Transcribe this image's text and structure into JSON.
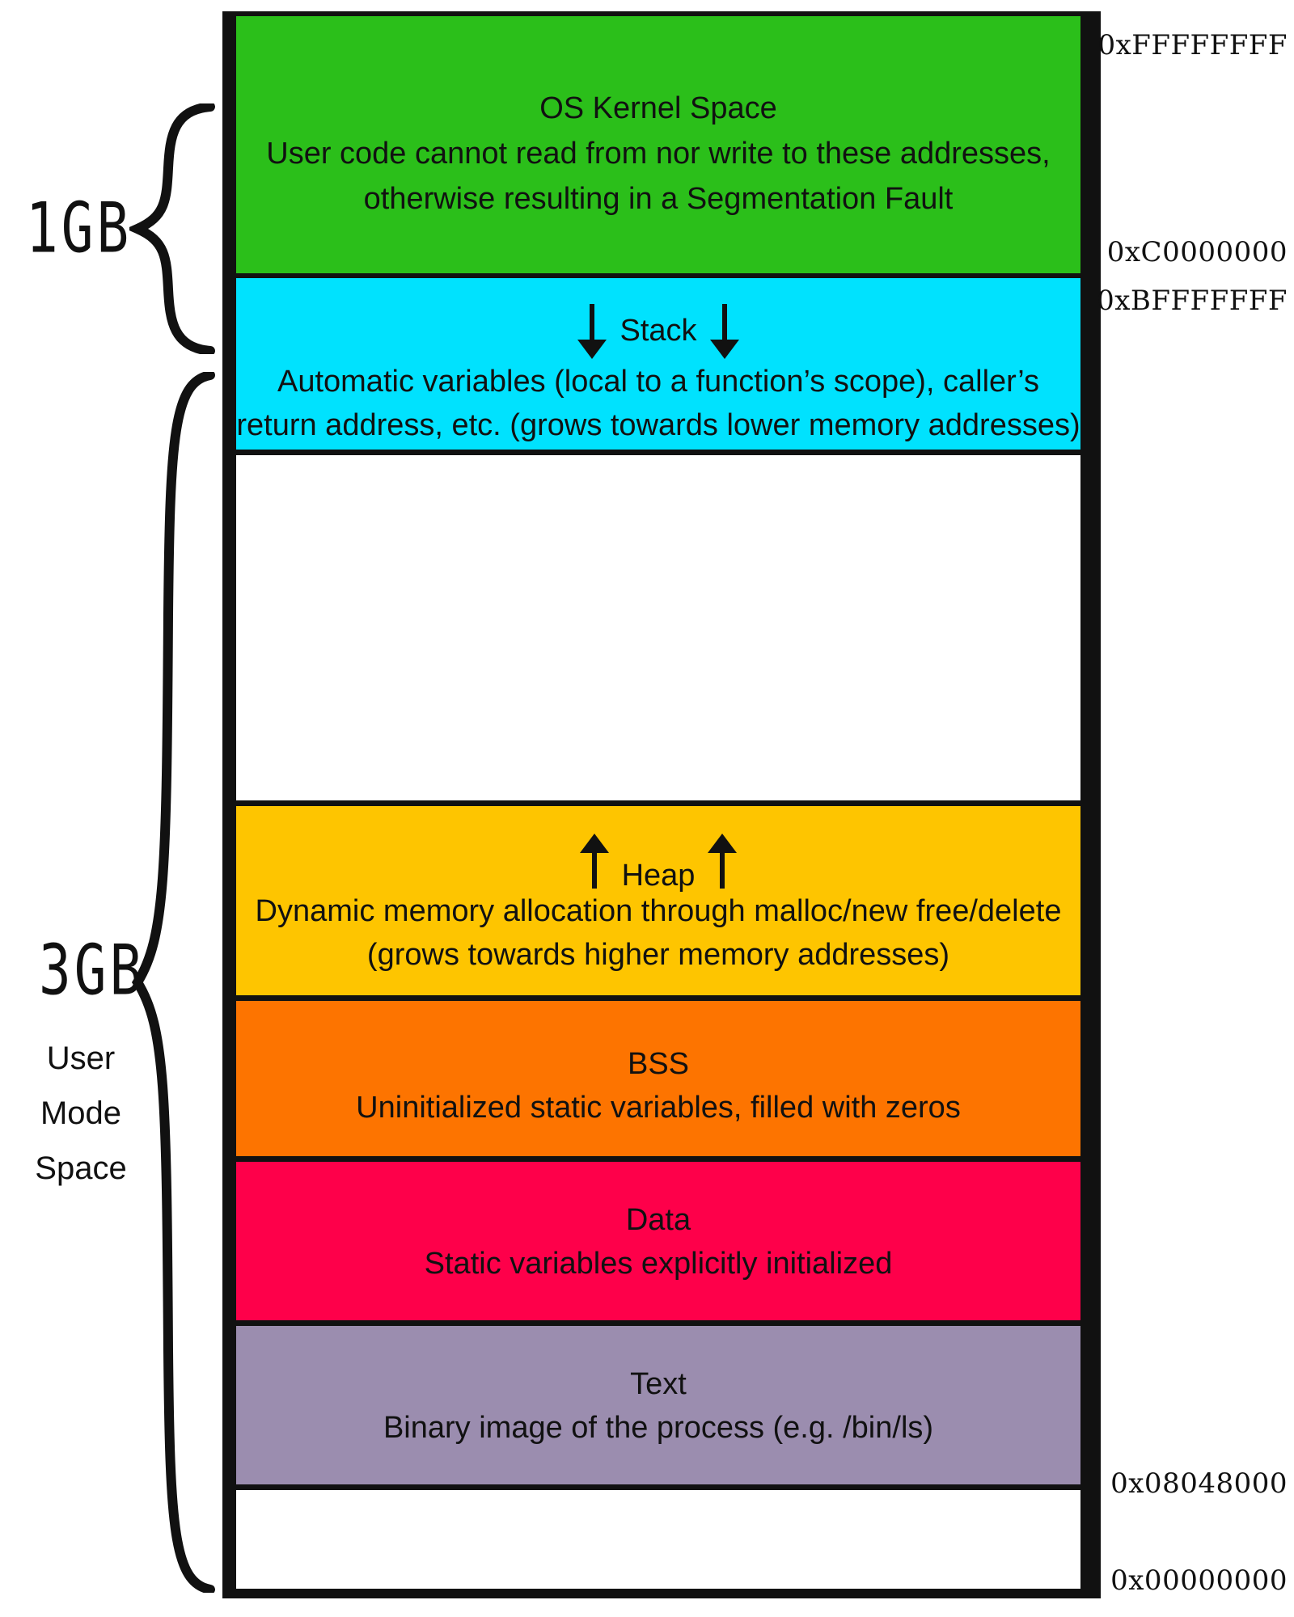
{
  "segments": {
    "kernel": {
      "title": "OS Kernel Space",
      "line1": "User code cannot read from nor write to these addresses,",
      "line2": "otherwise resulting in a Segmentation Fault",
      "color": "#2bbf1a"
    },
    "stack": {
      "title": "Stack",
      "line1": "Automatic variables (local to a function’s scope), caller’s",
      "line2": "return address, etc. (grows towards lower memory addresses)",
      "color": "#00e2fe",
      "arrow_direction": "down"
    },
    "heap": {
      "title": "Heap",
      "line1": "Dynamic memory allocation through malloc/new free/delete",
      "line2": "(grows towards higher memory addresses)",
      "color": "#fec500",
      "arrow_direction": "up"
    },
    "bss": {
      "title": "BSS",
      "line1": "Uninitialized static variables, filled with zeros",
      "color": "#fd7400"
    },
    "data": {
      "title": "Data",
      "line1": "Static variables explicitly initialized",
      "color": "#fe004a"
    },
    "text": {
      "title": "Text",
      "line1": "Binary image of the process (e.g. /bin/ls)",
      "color": "#9b8daf"
    }
  },
  "addresses": {
    "top": "0xFFFFFFFF",
    "kernel_start": "0xC0000000",
    "user_end": "0xBFFFFFFF",
    "text_start": "0x08048000",
    "bottom": "0x00000000"
  },
  "labels": {
    "kernel_size": "1GB",
    "user_size": "3GB",
    "user_space": [
      "User",
      "Mode",
      "Space"
    ]
  },
  "icons": {
    "stack_arrows": "arrow-down-icon",
    "heap_arrows": "arrow-up-icon",
    "brace": "curly-brace-icon"
  }
}
